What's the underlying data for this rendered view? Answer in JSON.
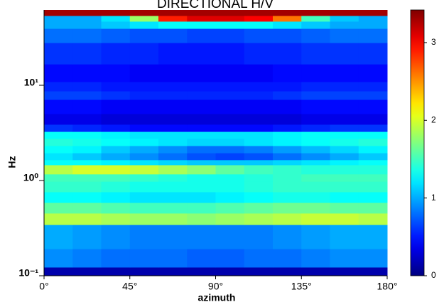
{
  "chart_data": {
    "type": "heatmap",
    "title": "DIRECTIONAL H/V",
    "x_label": "azimuth",
    "y_label": "Hz",
    "y_scale": "log",
    "colormap": "jet",
    "x_bins": [
      0,
      15,
      30,
      45,
      60,
      75,
      90,
      105,
      120,
      135,
      150,
      165,
      180
    ],
    "y_bins": [
      0.1,
      0.123,
      0.192,
      0.344,
      0.454,
      0.587,
      0.76,
      0.98,
      1.17,
      1.46,
      1.65,
      1.95,
      2.32,
      2.76,
      3.27,
      3.89,
      5.03,
      7.09,
      8.71,
      10.9,
      16.7,
      28.0,
      39.5,
      47.0,
      53.9,
      61.8
    ],
    "values": [
      [
        0.15,
        0.15,
        0.15,
        0.15,
        0.15,
        0.15,
        0.15,
        0.15,
        0.15,
        0.15,
        0.15,
        0.15
      ],
      [
        0.9,
        0.85,
        0.8,
        0.8,
        0.8,
        0.75,
        0.75,
        0.8,
        0.8,
        0.85,
        0.9,
        0.9
      ],
      [
        1.0,
        0.95,
        0.9,
        0.85,
        0.85,
        0.85,
        0.85,
        0.85,
        0.9,
        0.95,
        1.0,
        1.0
      ],
      [
        1.9,
        1.9,
        1.85,
        1.8,
        1.8,
        1.75,
        1.8,
        1.85,
        1.9,
        1.95,
        1.95,
        1.9
      ],
      [
        1.6,
        1.6,
        1.55,
        1.5,
        1.5,
        1.5,
        1.55,
        1.6,
        1.65,
        1.65,
        1.6,
        1.6
      ],
      [
        1.3,
        1.3,
        1.25,
        1.2,
        1.2,
        1.2,
        1.25,
        1.3,
        1.35,
        1.35,
        1.3,
        1.3
      ],
      [
        1.45,
        1.45,
        1.4,
        1.35,
        1.35,
        1.35,
        1.35,
        1.4,
        1.45,
        1.45,
        1.45,
        1.45
      ],
      [
        1.5,
        1.5,
        1.5,
        1.45,
        1.4,
        1.35,
        1.35,
        1.4,
        1.45,
        1.5,
        1.5,
        1.5
      ],
      [
        1.9,
        2.0,
        2.0,
        1.95,
        1.85,
        1.75,
        1.6,
        1.5,
        1.45,
        1.4,
        1.4,
        1.4
      ],
      [
        1.3,
        1.3,
        1.25,
        1.2,
        1.15,
        1.1,
        1.1,
        1.1,
        1.15,
        1.2,
        1.25,
        1.3
      ],
      [
        1.2,
        1.1,
        1.0,
        0.9,
        0.8,
        0.7,
        0.65,
        0.7,
        0.8,
        0.9,
        1.0,
        1.1
      ],
      [
        1.3,
        1.25,
        1.1,
        1.0,
        0.9,
        0.8,
        0.8,
        0.85,
        0.95,
        1.05,
        1.15,
        1.25
      ],
      [
        1.4,
        1.35,
        1.3,
        1.25,
        1.2,
        1.15,
        1.15,
        1.2,
        1.25,
        1.3,
        1.35,
        1.4
      ],
      [
        1.3,
        1.3,
        1.25,
        1.2,
        1.2,
        1.2,
        1.2,
        1.2,
        1.25,
        1.3,
        1.3,
        1.3
      ],
      [
        0.6,
        0.55,
        0.5,
        0.45,
        0.45,
        0.45,
        0.45,
        0.45,
        0.5,
        0.55,
        0.6,
        0.6
      ],
      [
        0.35,
        0.35,
        0.3,
        0.3,
        0.3,
        0.3,
        0.3,
        0.3,
        0.3,
        0.35,
        0.35,
        0.35
      ],
      [
        0.45,
        0.45,
        0.4,
        0.4,
        0.4,
        0.4,
        0.4,
        0.4,
        0.4,
        0.45,
        0.45,
        0.45
      ],
      [
        0.65,
        0.65,
        0.6,
        0.55,
        0.55,
        0.55,
        0.55,
        0.55,
        0.6,
        0.65,
        0.65,
        0.65
      ],
      [
        0.55,
        0.55,
        0.5,
        0.5,
        0.5,
        0.5,
        0.5,
        0.5,
        0.5,
        0.55,
        0.55,
        0.55
      ],
      [
        0.45,
        0.45,
        0.45,
        0.4,
        0.4,
        0.4,
        0.4,
        0.4,
        0.45,
        0.45,
        0.45,
        0.45
      ],
      [
        0.6,
        0.6,
        0.55,
        0.55,
        0.5,
        0.5,
        0.5,
        0.55,
        0.55,
        0.6,
        0.6,
        0.6
      ],
      [
        0.8,
        0.8,
        0.75,
        0.7,
        0.7,
        0.65,
        0.65,
        0.7,
        0.7,
        0.75,
        0.8,
        0.8
      ],
      [
        1.0,
        1.0,
        1.1,
        1.2,
        1.3,
        1.3,
        1.3,
        1.3,
        1.2,
        1.1,
        1.0,
        1.0
      ],
      [
        1.0,
        1.0,
        1.2,
        1.8,
        2.9,
        3.1,
        3.1,
        3.0,
        2.6,
        1.5,
        1.1,
        1.0
      ],
      [
        3.3,
        3.3,
        3.3,
        3.3,
        3.3,
        3.3,
        3.3,
        3.3,
        3.3,
        3.3,
        3.3,
        3.3
      ]
    ],
    "xlim": [
      0,
      180
    ],
    "xticks": [
      {
        "value": 0,
        "label": "0°"
      },
      {
        "value": 45,
        "label": "45°"
      },
      {
        "value": 90,
        "label": "90°"
      },
      {
        "value": 135,
        "label": "135°"
      },
      {
        "value": 180,
        "label": "180°"
      }
    ],
    "ylim": [
      0.1,
      61.8
    ],
    "yticks": [
      {
        "value": 0.1,
        "label": "10⁻¹"
      },
      {
        "value": 1,
        "label": "10⁰"
      },
      {
        "value": 10,
        "label": "10¹"
      }
    ],
    "zlim": [
      0,
      3.42
    ],
    "zticks": [
      0,
      1,
      2,
      3
    ]
  }
}
